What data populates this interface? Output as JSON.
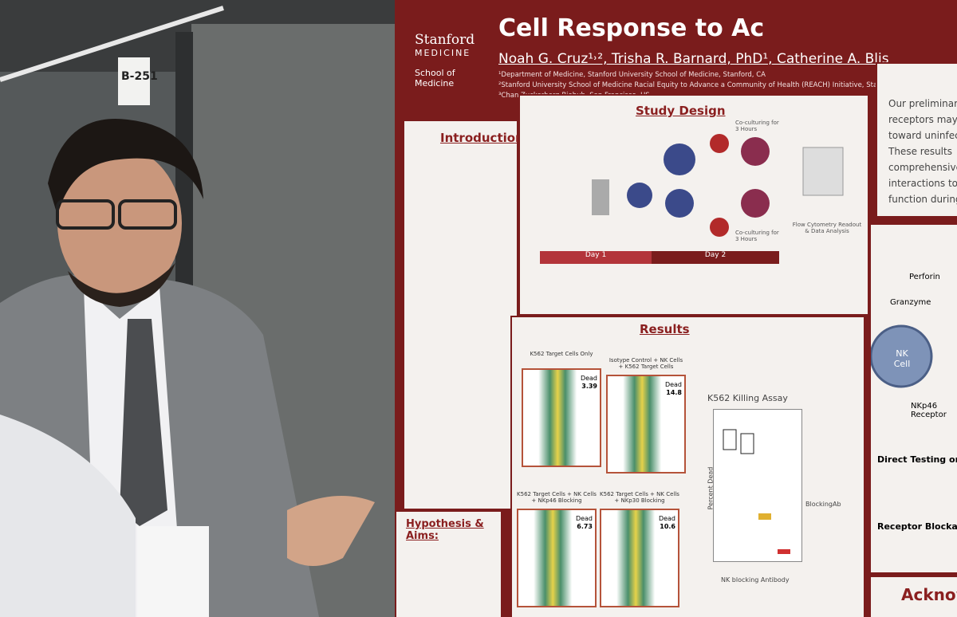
{
  "sign": "B-251",
  "poster": {
    "logo": {
      "name": "Stanford",
      "sub": "MEDICINE",
      "school": "School of Medicine"
    },
    "title": "Cell Response to Ac",
    "authors": "Noah G. Cruz¹˒², Trisha R. Barnard, PhD¹, Catherine A. Blis",
    "affiliations": [
      "¹Department of Medicine, Stanford University School of Medicine, Stanford, CA",
      "²Stanford University School of Medicine Racial Equity to Advance a Community of Health (REACH) Initiative, Stanford, CA",
      "³Chan Zuckerberg Biohub, San Francisco, US"
    ],
    "introduction": {
      "heading": "Introduction"
    },
    "hypothesis": {
      "heading": "Hypothesis & Aims:"
    },
    "study_design": {
      "heading": "Study Design",
      "labels": [
        "Co-culturing for 3 Hours",
        "Flow Cytometry Readout & Data Analysis",
        "Co-culturing for 3 Hours"
      ],
      "days": [
        "Day 1",
        "Day 2"
      ]
    },
    "results": {
      "heading": "Results",
      "panels": [
        {
          "title": "K562 Target Cells Only",
          "dead": "Dead",
          "value": "3.39"
        },
        {
          "title": "Isotype Control + NK Cells + K562 Target Cells",
          "dead": "Dead",
          "value": "14.8"
        },
        {
          "title": "K562 Target Cells + NK Cells + NKp46 Blocking",
          "dead": "Dead",
          "value": "6.73"
        },
        {
          "title": "K562 Target Cells + NK Cells + NKp30 Blocking",
          "dead": "Dead",
          "value": "10.6"
        }
      ],
      "assay": {
        "title": "K562 Killing Assay",
        "y_label": "Percent Dead",
        "x_label": "NK blocking Antibody",
        "legend_title": "BlockingAb"
      }
    },
    "conclusions": [
      "Our preliminary",
      "receptors may",
      "toward uninfec",
      "These results",
      "comprehensive",
      "interactions to",
      "function during v"
    ],
    "future": {
      "labels": [
        "Perforin",
        "Granzyme",
        "NK Cell",
        "NKp46 Receptor"
      ],
      "items": [
        "Direct Testing on ZIKV-I",
        "Receptor Blockade Stu"
      ]
    },
    "acknowledgements": "Acknow"
  }
}
